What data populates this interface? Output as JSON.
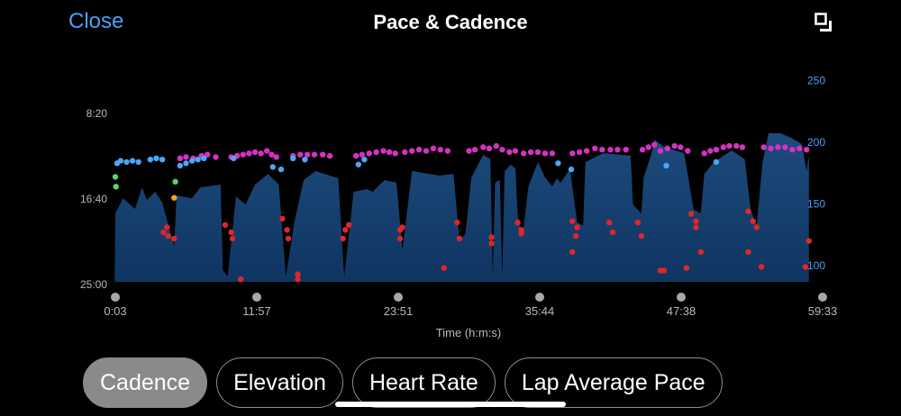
{
  "header": {
    "close_label": "Close",
    "title": "Pace & Cadence",
    "expand_icon": "expand-icon"
  },
  "tabs": [
    {
      "label": "Cadence",
      "active": true
    },
    {
      "label": "Elevation",
      "active": false
    },
    {
      "label": "Heart Rate",
      "active": false
    },
    {
      "label": "Lap Average Pace",
      "active": false
    }
  ],
  "colors": {
    "accent": "#4aa0f5",
    "area_top": "#1d4b7c",
    "area_bottom": "#0f3562",
    "cad_high": "#d531c4",
    "cad_mid": "#4aa7f5",
    "cad_green": "#5fd16a",
    "cad_orange": "#f5a031",
    "cad_low": "#e0262b"
  },
  "chart_data": {
    "type": "area+scatter",
    "title": "Pace & Cadence",
    "xlabel": "Time (h:m:s)",
    "x_ticks": [
      {
        "min": 0.05,
        "label": "0:03"
      },
      {
        "min": 11.95,
        "label": "11:57"
      },
      {
        "min": 23.85,
        "label": "23:51"
      },
      {
        "min": 35.73,
        "label": "35:44"
      },
      {
        "min": 47.63,
        "label": "47:38"
      },
      {
        "min": 59.55,
        "label": "59:33"
      }
    ],
    "xlim_min": [
      0.05,
      59.55
    ],
    "left_axis": {
      "name": "Pace",
      "unit": "sec/unit",
      "ticks": [
        {
          "v": 500,
          "label": "8:20"
        },
        {
          "v": 1000,
          "label": "16:40"
        },
        {
          "v": 1500,
          "label": "25:00"
        }
      ],
      "range": [
        500,
        1500
      ],
      "inverted": true
    },
    "right_axis": {
      "name": "Cadence",
      "ticks": [
        {
          "v": 250,
          "label": "250"
        },
        {
          "v": 200,
          "label": "200"
        },
        {
          "v": 150,
          "label": "150"
        },
        {
          "v": 100,
          "label": "100"
        }
      ]
    },
    "pace_area": [
      [
        0,
        1500
      ],
      [
        0.05,
        1084
      ],
      [
        0.7,
        995
      ],
      [
        1.7,
        1058
      ],
      [
        2.3,
        932
      ],
      [
        2.7,
        1005
      ],
      [
        3.4,
        958
      ],
      [
        4.0,
        1021
      ],
      [
        5.0,
        1274
      ],
      [
        5.2,
        979
      ],
      [
        6.5,
        995
      ],
      [
        7.2,
        932
      ],
      [
        8.9,
        916
      ],
      [
        9.1,
        1416
      ],
      [
        9.5,
        1453
      ],
      [
        10.2,
        984
      ],
      [
        11.0,
        1032
      ],
      [
        11.8,
        916
      ],
      [
        12.9,
        853
      ],
      [
        13.8,
        916
      ],
      [
        14.4,
        1453
      ],
      [
        15.1,
        1137
      ],
      [
        15.9,
        889
      ],
      [
        16.9,
        837
      ],
      [
        18.8,
        879
      ],
      [
        19.3,
        1453
      ],
      [
        20.1,
        958
      ],
      [
        21.2,
        942
      ],
      [
        21.7,
        958
      ],
      [
        22.7,
        889
      ],
      [
        23.7,
        905
      ],
      [
        24.2,
        1300
      ],
      [
        25.0,
        837
      ],
      [
        27.3,
        863
      ],
      [
        28.5,
        853
      ],
      [
        29.0,
        1242
      ],
      [
        29.5,
        1205
      ],
      [
        30.0,
        874
      ],
      [
        31.0,
        742
      ],
      [
        31.6,
        768
      ],
      [
        31.8,
        1453
      ],
      [
        32.0,
        905
      ],
      [
        32.4,
        889
      ],
      [
        32.6,
        1453
      ],
      [
        32.8,
        837
      ],
      [
        33.3,
        800
      ],
      [
        33.7,
        821
      ],
      [
        33.9,
        1100
      ],
      [
        34.3,
        1221
      ],
      [
        34.8,
        926
      ],
      [
        35.6,
        784
      ],
      [
        36.2,
        874
      ],
      [
        36.8,
        926
      ],
      [
        37.2,
        879
      ],
      [
        37.5,
        905
      ],
      [
        38.3,
        826
      ],
      [
        38.9,
        1137
      ],
      [
        39.4,
        1153
      ],
      [
        39.6,
        784
      ],
      [
        41.1,
        732
      ],
      [
        43.4,
        747
      ],
      [
        43.6,
        1032
      ],
      [
        44.3,
        1084
      ],
      [
        44.5,
        874
      ],
      [
        45.1,
        747
      ],
      [
        45.4,
        653
      ],
      [
        46.2,
        695
      ],
      [
        47.9,
        732
      ],
      [
        48.7,
        1063
      ],
      [
        49.3,
        1084
      ],
      [
        49.6,
        853
      ],
      [
        50.4,
        784
      ],
      [
        51.9,
        716
      ],
      [
        53.0,
        768
      ],
      [
        53.5,
        1063
      ],
      [
        54.0,
        1153
      ],
      [
        54.5,
        784
      ],
      [
        55.0,
        616
      ],
      [
        56.0,
        616
      ],
      [
        56.9,
        642
      ],
      [
        57.8,
        679
      ],
      [
        58.2,
        837
      ],
      [
        58.4,
        747
      ],
      [
        58.4,
        1500
      ]
    ],
    "cadence_points": {
      "high": [
        [
          5.5,
          187
        ],
        [
          6.0,
          188
        ],
        [
          6.6,
          187
        ],
        [
          7.3,
          189
        ],
        [
          7.8,
          190
        ],
        [
          8.5,
          188
        ],
        [
          9.8,
          188
        ],
        [
          10.3,
          189
        ],
        [
          10.8,
          190
        ],
        [
          11.3,
          191
        ],
        [
          11.8,
          192
        ],
        [
          12.3,
          191
        ],
        [
          12.8,
          193
        ],
        [
          13.2,
          190
        ],
        [
          13.6,
          188
        ],
        [
          15.0,
          189
        ],
        [
          15.6,
          190
        ],
        [
          16.2,
          190
        ],
        [
          16.8,
          190
        ],
        [
          17.5,
          190
        ],
        [
          18.1,
          189
        ],
        [
          20.3,
          189
        ],
        [
          20.8,
          190
        ],
        [
          21.4,
          191
        ],
        [
          22.0,
          192
        ],
        [
          22.6,
          193
        ],
        [
          23.1,
          192
        ],
        [
          23.6,
          191
        ],
        [
          24.4,
          192
        ],
        [
          25.0,
          193
        ],
        [
          25.6,
          194
        ],
        [
          26.2,
          193
        ],
        [
          26.8,
          195
        ],
        [
          27.4,
          194
        ],
        [
          28.0,
          193
        ],
        [
          29.8,
          193
        ],
        [
          30.3,
          194
        ],
        [
          31.0,
          196
        ],
        [
          31.5,
          195
        ],
        [
          32.1,
          197
        ],
        [
          32.6,
          194
        ],
        [
          33.2,
          192
        ],
        [
          33.7,
          193
        ],
        [
          34.4,
          191
        ],
        [
          35.0,
          192
        ],
        [
          35.6,
          192
        ],
        [
          36.2,
          191
        ],
        [
          36.8,
          191
        ],
        [
          38.5,
          191
        ],
        [
          39.1,
          192
        ],
        [
          39.7,
          193
        ],
        [
          40.4,
          195
        ],
        [
          41.0,
          194
        ],
        [
          41.7,
          194
        ],
        [
          42.3,
          194
        ],
        [
          43.0,
          194
        ],
        [
          44.4,
          194
        ],
        [
          44.9,
          196
        ],
        [
          45.4,
          198
        ],
        [
          45.9,
          193
        ],
        [
          46.5,
          195
        ],
        [
          47.1,
          197
        ],
        [
          47.6,
          196
        ],
        [
          48.2,
          193
        ],
        [
          49.6,
          191
        ],
        [
          50.1,
          193
        ],
        [
          50.6,
          194
        ],
        [
          51.2,
          196
        ],
        [
          51.7,
          197
        ],
        [
          52.3,
          197
        ],
        [
          52.8,
          196
        ],
        [
          54.6,
          196
        ],
        [
          55.2,
          195
        ],
        [
          55.8,
          196
        ],
        [
          56.4,
          196
        ],
        [
          57.0,
          194
        ],
        [
          57.6,
          195
        ],
        [
          58.2,
          194
        ]
      ],
      "mid": [
        [
          0.2,
          183
        ],
        [
          0.5,
          185
        ],
        [
          1.0,
          184
        ],
        [
          1.5,
          185
        ],
        [
          2.0,
          184
        ],
        [
          3.0,
          186
        ],
        [
          3.5,
          187
        ],
        [
          4.0,
          186
        ],
        [
          5.5,
          181
        ],
        [
          6.0,
          183
        ],
        [
          6.5,
          185
        ],
        [
          7.0,
          186
        ],
        [
          7.5,
          187
        ],
        [
          10.0,
          187
        ],
        [
          13.3,
          180
        ],
        [
          14.0,
          178
        ],
        [
          15.0,
          187
        ],
        [
          16.0,
          186
        ],
        [
          20.5,
          182
        ],
        [
          21.0,
          186
        ],
        [
          37.3,
          183
        ],
        [
          38.4,
          178
        ],
        [
          46.4,
          181
        ],
        [
          50.6,
          184
        ]
      ],
      "green": [
        [
          0.05,
          172
        ],
        [
          0.1,
          164
        ],
        [
          5.1,
          168
        ]
      ],
      "orange": [
        [
          5.0,
          155
        ]
      ],
      "low": [
        [
          4.1,
          127
        ],
        [
          4.4,
          131
        ],
        [
          4.5,
          124
        ],
        [
          5.0,
          122
        ],
        [
          9.3,
          133
        ],
        [
          9.8,
          127
        ],
        [
          9.9,
          122
        ],
        [
          10.6,
          89
        ],
        [
          14.1,
          138
        ],
        [
          14.5,
          129
        ],
        [
          14.6,
          122
        ],
        [
          15.4,
          93
        ],
        [
          15.4,
          89
        ],
        [
          19.2,
          122
        ],
        [
          19.4,
          129
        ],
        [
          19.7,
          133
        ],
        [
          24.0,
          129
        ],
        [
          24.2,
          131
        ],
        [
          24.0,
          122
        ],
        [
          27.7,
          98
        ],
        [
          28.8,
          135
        ],
        [
          29.0,
          122
        ],
        [
          31.7,
          123
        ],
        [
          31.7,
          118
        ],
        [
          33.9,
          135
        ],
        [
          34.2,
          129
        ],
        [
          34.2,
          126
        ],
        [
          38.5,
          136
        ],
        [
          38.9,
          131
        ],
        [
          38.8,
          124
        ],
        [
          38.5,
          111
        ],
        [
          41.6,
          135
        ],
        [
          41.9,
          127
        ],
        [
          44.0,
          135
        ],
        [
          44.3,
          124
        ],
        [
          45.9,
          96
        ],
        [
          46.2,
          96
        ],
        [
          48.1,
          98
        ],
        [
          48.5,
          142
        ],
        [
          48.9,
          136
        ],
        [
          48.9,
          131
        ],
        [
          49.3,
          111
        ],
        [
          53.3,
          144
        ],
        [
          53.7,
          136
        ],
        [
          54.0,
          131
        ],
        [
          53.3,
          111
        ],
        [
          54.4,
          99
        ],
        [
          58.1,
          99
        ],
        [
          58.4,
          120
        ]
      ]
    }
  }
}
